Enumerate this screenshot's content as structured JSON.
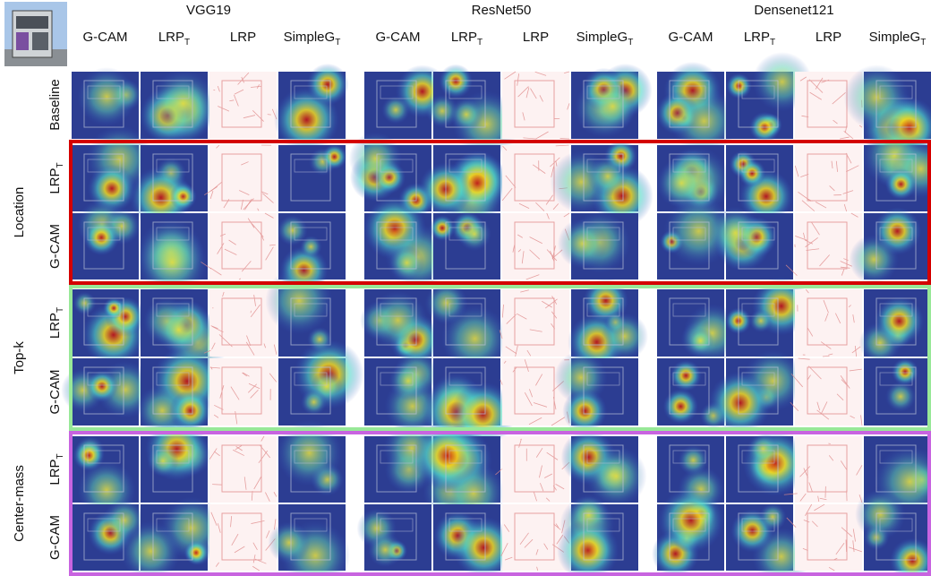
{
  "models": [
    "VGG19",
    "ResNet50",
    "Densenet121"
  ],
  "methods": [
    {
      "name": "G-CAM"
    },
    {
      "name": "LRP",
      "sub": "T"
    },
    {
      "name": "LRP"
    },
    {
      "name": "SimpleG",
      "sub": "T"
    }
  ],
  "baseline_row": "Baseline",
  "groups": [
    {
      "label": "Location",
      "rows": [
        {
          "name": "LRP",
          "sub": "T"
        },
        {
          "name": "G-CAM"
        }
      ]
    },
    {
      "label": "Top-k",
      "rows": [
        {
          "name": "LRP",
          "sub": "T"
        },
        {
          "name": "G-CAM"
        }
      ]
    },
    {
      "label": "Center-mass",
      "rows": [
        {
          "name": "LRP",
          "sub": "T"
        },
        {
          "name": "G-CAM"
        }
      ]
    }
  ]
}
